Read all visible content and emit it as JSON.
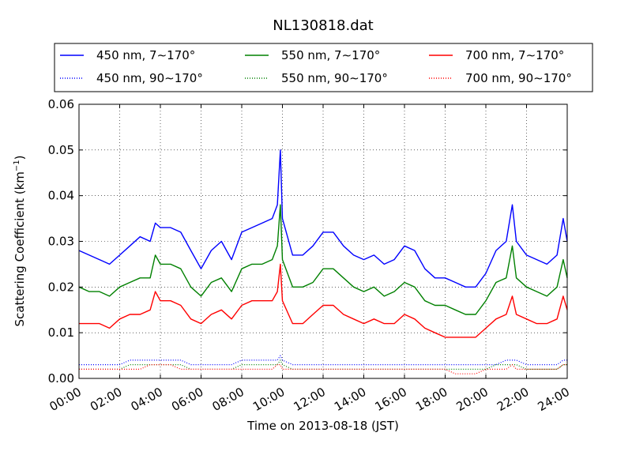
{
  "chart_data": {
    "type": "line",
    "title": "NL130818.dat",
    "xlabel": "Time on 2013-08-18 (JST)",
    "ylabel": "Scattering Coefficient (km",
    "ylabel_sup": "−1",
    "ylabel_end": ")",
    "xlim": [
      "00:00",
      "24:00"
    ],
    "ylim": [
      0,
      0.06
    ],
    "grid": true,
    "legend_position": "top",
    "x_ticks": [
      "00:00",
      "02:00",
      "04:00",
      "06:00",
      "08:00",
      "10:00",
      "12:00",
      "14:00",
      "16:00",
      "18:00",
      "20:00",
      "22:00",
      "24:00"
    ],
    "y_ticks": [
      "0.00",
      "0.01",
      "0.02",
      "0.03",
      "0.04",
      "0.05",
      "0.06"
    ],
    "x_hours": [
      0,
      0.5,
      1,
      1.5,
      2,
      2.5,
      3,
      3.5,
      3.75,
      4,
      4.5,
      5,
      5.5,
      6,
      6.5,
      7,
      7.5,
      8,
      8.5,
      9,
      9.5,
      9.75,
      9.9,
      10,
      10.5,
      11,
      11.5,
      12,
      12.5,
      13,
      13.5,
      14,
      14.5,
      15,
      15.5,
      16,
      16.5,
      17,
      17.5,
      18,
      18.5,
      19,
      19.5,
      20,
      20.5,
      21,
      21.3,
      21.5,
      22,
      22.5,
      23,
      23.5,
      23.8,
      24
    ],
    "series": [
      {
        "name": "450 nm, 7∼170°",
        "color": "#0000ff",
        "style": "solid",
        "values": [
          0.028,
          0.027,
          0.026,
          0.025,
          0.027,
          0.029,
          0.031,
          0.03,
          0.034,
          0.033,
          0.033,
          0.032,
          0.028,
          0.024,
          0.028,
          0.03,
          0.026,
          0.032,
          0.033,
          0.034,
          0.035,
          0.038,
          0.05,
          0.035,
          0.027,
          0.027,
          0.029,
          0.032,
          0.032,
          0.029,
          0.027,
          0.026,
          0.027,
          0.025,
          0.026,
          0.029,
          0.028,
          0.024,
          0.022,
          0.022,
          0.021,
          0.02,
          0.02,
          0.023,
          0.028,
          0.03,
          0.038,
          0.03,
          0.027,
          0.026,
          0.025,
          0.027,
          0.035,
          0.03
        ]
      },
      {
        "name": "450 nm, 90∼170°",
        "color": "#0000ff",
        "style": "dotted",
        "values": [
          0.003,
          0.003,
          0.003,
          0.003,
          0.003,
          0.004,
          0.004,
          0.004,
          0.004,
          0.004,
          0.004,
          0.004,
          0.003,
          0.003,
          0.003,
          0.003,
          0.003,
          0.004,
          0.004,
          0.004,
          0.004,
          0.004,
          0.005,
          0.004,
          0.003,
          0.003,
          0.003,
          0.003,
          0.003,
          0.003,
          0.003,
          0.003,
          0.003,
          0.003,
          0.003,
          0.003,
          0.003,
          0.003,
          0.003,
          0.003,
          0.003,
          0.003,
          0.003,
          0.003,
          0.003,
          0.004,
          0.004,
          0.004,
          0.003,
          0.003,
          0.003,
          0.003,
          0.004,
          0.004
        ]
      },
      {
        "name": "550 nm, 7∼170°",
        "color": "#008000",
        "style": "solid",
        "values": [
          0.02,
          0.019,
          0.019,
          0.018,
          0.02,
          0.021,
          0.022,
          0.022,
          0.027,
          0.025,
          0.025,
          0.024,
          0.02,
          0.018,
          0.021,
          0.022,
          0.019,
          0.024,
          0.025,
          0.025,
          0.026,
          0.029,
          0.038,
          0.026,
          0.02,
          0.02,
          0.021,
          0.024,
          0.024,
          0.022,
          0.02,
          0.019,
          0.02,
          0.018,
          0.019,
          0.021,
          0.02,
          0.017,
          0.016,
          0.016,
          0.015,
          0.014,
          0.014,
          0.017,
          0.021,
          0.022,
          0.029,
          0.022,
          0.02,
          0.019,
          0.018,
          0.02,
          0.026,
          0.022
        ]
      },
      {
        "name": "550 nm, 90∼170°",
        "color": "#008000",
        "style": "dotted",
        "values": [
          0.002,
          0.002,
          0.002,
          0.002,
          0.002,
          0.003,
          0.003,
          0.003,
          0.003,
          0.003,
          0.003,
          0.003,
          0.002,
          0.002,
          0.002,
          0.002,
          0.002,
          0.003,
          0.003,
          0.003,
          0.003,
          0.003,
          0.004,
          0.003,
          0.002,
          0.002,
          0.002,
          0.002,
          0.002,
          0.002,
          0.002,
          0.002,
          0.002,
          0.002,
          0.002,
          0.002,
          0.002,
          0.002,
          0.002,
          0.002,
          0.002,
          0.002,
          0.002,
          0.002,
          0.003,
          0.003,
          0.003,
          0.003,
          0.002,
          0.002,
          0.002,
          0.002,
          0.003,
          0.003
        ]
      },
      {
        "name": "700 nm, 7∼170°",
        "color": "#ff0000",
        "style": "solid",
        "values": [
          0.012,
          0.012,
          0.012,
          0.011,
          0.013,
          0.014,
          0.014,
          0.015,
          0.019,
          0.017,
          0.017,
          0.016,
          0.013,
          0.012,
          0.014,
          0.015,
          0.013,
          0.016,
          0.017,
          0.017,
          0.017,
          0.019,
          0.025,
          0.017,
          0.012,
          0.012,
          0.014,
          0.016,
          0.016,
          0.014,
          0.013,
          0.012,
          0.013,
          0.012,
          0.012,
          0.014,
          0.013,
          0.011,
          0.01,
          0.009,
          0.009,
          0.009,
          0.009,
          0.011,
          0.013,
          0.014,
          0.018,
          0.014,
          0.013,
          0.012,
          0.012,
          0.013,
          0.018,
          0.015
        ]
      },
      {
        "name": "700 nm, 90∼170°",
        "color": "#ff0000",
        "style": "dotted",
        "values": [
          0.002,
          0.002,
          0.002,
          0.002,
          0.002,
          0.002,
          0.002,
          0.003,
          0.003,
          0.003,
          0.003,
          0.002,
          0.002,
          0.002,
          0.002,
          0.002,
          0.002,
          0.002,
          0.002,
          0.002,
          0.002,
          0.003,
          0.003,
          0.002,
          0.002,
          0.002,
          0.002,
          0.002,
          0.002,
          0.002,
          0.002,
          0.002,
          0.002,
          0.002,
          0.002,
          0.002,
          0.002,
          0.002,
          0.002,
          0.002,
          0.001,
          0.001,
          0.001,
          0.002,
          0.002,
          0.002,
          0.003,
          0.002,
          0.002,
          0.002,
          0.002,
          0.002,
          0.003,
          0.003
        ]
      }
    ],
    "legend_order": [
      0,
      2,
      4,
      1,
      3,
      5
    ]
  }
}
